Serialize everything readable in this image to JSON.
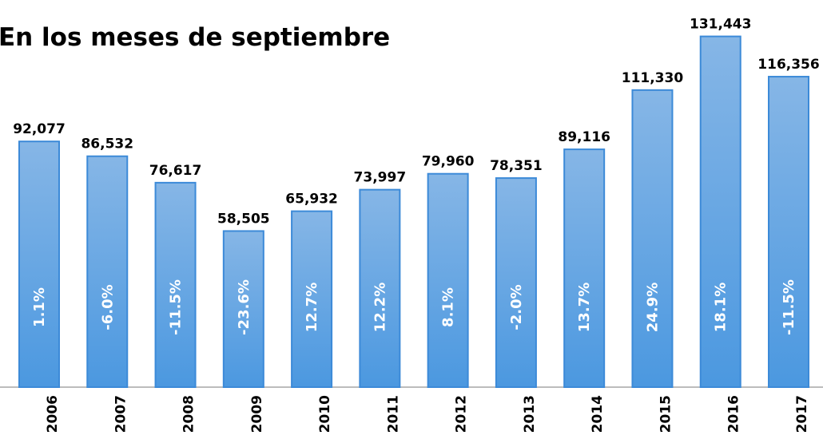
{
  "chart_data": {
    "type": "bar",
    "title": "En los meses de septiembre",
    "categories": [
      "2006",
      "2007",
      "2008",
      "2009",
      "2010",
      "2011",
      "2012",
      "2013",
      "2014",
      "2015",
      "2016",
      "2017"
    ],
    "values": [
      92077,
      86532,
      76617,
      58505,
      65932,
      73997,
      79960,
      78351,
      89116,
      111330,
      131443,
      116356
    ],
    "value_labels": [
      "92,077",
      "86,532",
      "76,617",
      "58,505",
      "65,932",
      "73,997",
      "79,960",
      "78,351",
      "89,116",
      "111,330",
      "131,443",
      "116,356"
    ],
    "inner_labels": [
      "1.1%",
      "-6.0%",
      "-11.5%",
      "-23.6%",
      "12.7%",
      "12.2%",
      "8.1%",
      "-2.0%",
      "13.7%",
      "24.9%",
      "18.1%",
      "-11.5%"
    ],
    "color": "#5fa3e3",
    "ylim": [
      0,
      140000
    ]
  }
}
